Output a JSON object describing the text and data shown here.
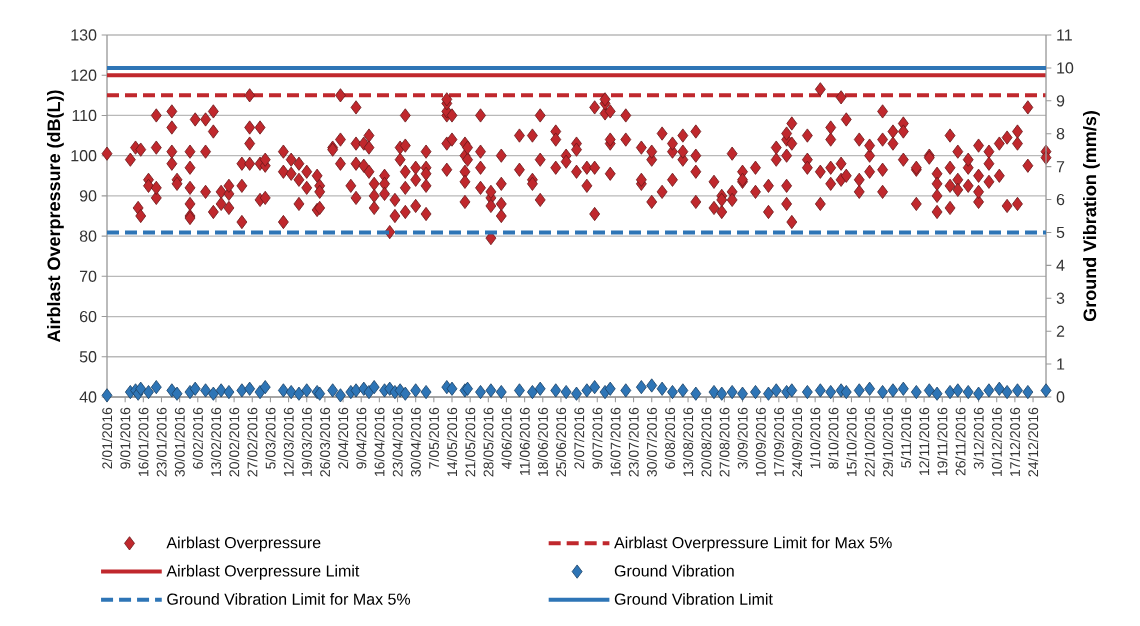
{
  "chart_data": {
    "type": "scatter",
    "ylabel": "Airblast Overpressure (dB(L))",
    "y2label": "Ground Vibration (mm/s)",
    "xlim": [
      "2016-01-02",
      "2016-12-29"
    ],
    "xticks": [
      {
        "value": "2016-01-02",
        "label": "2/01/2016"
      },
      {
        "value": "2016-01-09",
        "label": "9/01/2016"
      },
      {
        "value": "2016-01-16",
        "label": "16/01/2016"
      },
      {
        "value": "2016-01-23",
        "label": "23/01/2016"
      },
      {
        "value": "2016-01-30",
        "label": "30/01/2016"
      },
      {
        "value": "2016-02-06",
        "label": "6/02/2016"
      },
      {
        "value": "2016-02-13",
        "label": "13/02/2016"
      },
      {
        "value": "2016-02-20",
        "label": "20/02/2016"
      },
      {
        "value": "2016-02-27",
        "label": "27/02/2016"
      },
      {
        "value": "2016-03-05",
        "label": "5/03/2016"
      },
      {
        "value": "2016-03-12",
        "label": "12/03/2016"
      },
      {
        "value": "2016-03-19",
        "label": "19/03/2016"
      },
      {
        "value": "2016-03-26",
        "label": "26/03/2016"
      },
      {
        "value": "2016-04-02",
        "label": "2/04/2016"
      },
      {
        "value": "2016-04-09",
        "label": "9/04/2016"
      },
      {
        "value": "2016-04-16",
        "label": "16/04/2016"
      },
      {
        "value": "2016-04-23",
        "label": "23/04/2016"
      },
      {
        "value": "2016-04-30",
        "label": "30/04/2016"
      },
      {
        "value": "2016-05-07",
        "label": "7/05/2016"
      },
      {
        "value": "2016-05-14",
        "label": "14/05/2016"
      },
      {
        "value": "2016-05-21",
        "label": "21/05/2016"
      },
      {
        "value": "2016-05-28",
        "label": "28/05/2016"
      },
      {
        "value": "2016-06-04",
        "label": "4/06/2016"
      },
      {
        "value": "2016-06-11",
        "label": "11/06/2016"
      },
      {
        "value": "2016-06-18",
        "label": "18/06/2016"
      },
      {
        "value": "2016-06-25",
        "label": "25/06/2016"
      },
      {
        "value": "2016-07-02",
        "label": "2/07/2016"
      },
      {
        "value": "2016-07-09",
        "label": "9/07/2016"
      },
      {
        "value": "2016-07-16",
        "label": "16/07/2016"
      },
      {
        "value": "2016-07-23",
        "label": "23/07/2016"
      },
      {
        "value": "2016-07-30",
        "label": "30/07/2016"
      },
      {
        "value": "2016-08-06",
        "label": "6/08/2016"
      },
      {
        "value": "2016-08-13",
        "label": "13/08/2016"
      },
      {
        "value": "2016-08-20",
        "label": "20/08/2016"
      },
      {
        "value": "2016-08-27",
        "label": "27/08/2016"
      },
      {
        "value": "2016-09-03",
        "label": "3/09/2016"
      },
      {
        "value": "2016-09-10",
        "label": "10/09/2016"
      },
      {
        "value": "2016-09-17",
        "label": "17/09/2016"
      },
      {
        "value": "2016-09-24",
        "label": "24/09/2016"
      },
      {
        "value": "2016-10-01",
        "label": "1/10/2016"
      },
      {
        "value": "2016-10-08",
        "label": "8/10/2016"
      },
      {
        "value": "2016-10-15",
        "label": "15/10/2016"
      },
      {
        "value": "2016-10-22",
        "label": "22/10/2016"
      },
      {
        "value": "2016-10-29",
        "label": "29/10/2016"
      },
      {
        "value": "2016-11-05",
        "label": "5/11/2016"
      },
      {
        "value": "2016-11-12",
        "label": "12/11/2016"
      },
      {
        "value": "2016-11-19",
        "label": "19/11/2016"
      },
      {
        "value": "2016-11-26",
        "label": "26/11/2016"
      },
      {
        "value": "2016-12-03",
        "label": "3/12/2016"
      },
      {
        "value": "2016-12-10",
        "label": "10/12/2016"
      },
      {
        "value": "2016-12-17",
        "label": "17/12/2016"
      },
      {
        "value": "2016-12-24",
        "label": "24/12/2016"
      }
    ],
    "ylim": [
      40,
      130
    ],
    "yticks": [
      40,
      50,
      60,
      70,
      80,
      90,
      100,
      110,
      120,
      130
    ],
    "y2lim": [
      0,
      11
    ],
    "y2ticks": [
      0,
      1,
      2,
      3,
      4,
      5,
      6,
      7,
      8,
      9,
      10,
      11
    ],
    "grid": "y",
    "legend": "bottom",
    "marker": "diamond",
    "series": [
      {
        "name": "Airblast Overpressure",
        "color": "#c0282d",
        "x": [
          "2016-01-02",
          "2016-01-11",
          "2016-01-13",
          "2016-01-14",
          "2016-01-15",
          "2016-01-15",
          "2016-01-18",
          "2016-01-18",
          "2016-01-21",
          "2016-01-21",
          "2016-01-21",
          "2016-01-21",
          "2016-01-27",
          "2016-01-27",
          "2016-01-27",
          "2016-01-27",
          "2016-01-29",
          "2016-01-29",
          "2016-02-03",
          "2016-02-03",
          "2016-02-03",
          "2016-02-03",
          "2016-02-03",
          "2016-02-03",
          "2016-02-05",
          "2016-02-09",
          "2016-02-09",
          "2016-02-09",
          "2016-02-12",
          "2016-02-12",
          "2016-02-12",
          "2016-02-15",
          "2016-02-15",
          "2016-02-18",
          "2016-02-18",
          "2016-02-18",
          "2016-02-23",
          "2016-02-23",
          "2016-02-23",
          "2016-02-26",
          "2016-02-26",
          "2016-02-26",
          "2016-02-26",
          "2016-03-01",
          "2016-03-01",
          "2016-03-01",
          "2016-03-03",
          "2016-03-03",
          "2016-03-03",
          "2016-03-10",
          "2016-03-10",
          "2016-03-10",
          "2016-03-13",
          "2016-03-13",
          "2016-03-16",
          "2016-03-16",
          "2016-03-16",
          "2016-03-19",
          "2016-03-19",
          "2016-03-23",
          "2016-03-23",
          "2016-03-24",
          "2016-03-24",
          "2016-03-24",
          "2016-03-29",
          "2016-03-29",
          "2016-04-01",
          "2016-04-01",
          "2016-04-01",
          "2016-04-05",
          "2016-04-07",
          "2016-04-07",
          "2016-04-07",
          "2016-04-07",
          "2016-04-10",
          "2016-04-10",
          "2016-04-12",
          "2016-04-12",
          "2016-04-12",
          "2016-04-14",
          "2016-04-14",
          "2016-04-14",
          "2016-04-18",
          "2016-04-18",
          "2016-04-18",
          "2016-04-20",
          "2016-04-22",
          "2016-04-22",
          "2016-04-24",
          "2016-04-24",
          "2016-04-26",
          "2016-04-26",
          "2016-04-26",
          "2016-04-26",
          "2016-04-26",
          "2016-04-30",
          "2016-04-30",
          "2016-04-30",
          "2016-05-04",
          "2016-05-04",
          "2016-05-04",
          "2016-05-04",
          "2016-05-04",
          "2016-05-12",
          "2016-05-12",
          "2016-05-12",
          "2016-05-12",
          "2016-05-12",
          "2016-05-12",
          "2016-05-14",
          "2016-05-14",
          "2016-05-19",
          "2016-05-19",
          "2016-05-19",
          "2016-05-19",
          "2016-05-19",
          "2016-05-20",
          "2016-05-20",
          "2016-05-25",
          "2016-05-25",
          "2016-05-25",
          "2016-05-25",
          "2016-05-29",
          "2016-05-29",
          "2016-05-29",
          "2016-05-29",
          "2016-06-02",
          "2016-06-02",
          "2016-06-02",
          "2016-06-02",
          "2016-06-09",
          "2016-06-09",
          "2016-06-14",
          "2016-06-14",
          "2016-06-14",
          "2016-06-17",
          "2016-06-17",
          "2016-06-17",
          "2016-06-23",
          "2016-06-23",
          "2016-06-23",
          "2016-06-27",
          "2016-06-27",
          "2016-07-01",
          "2016-07-01",
          "2016-07-01",
          "2016-07-05",
          "2016-07-05",
          "2016-07-08",
          "2016-07-08",
          "2016-07-08",
          "2016-07-12",
          "2016-07-12",
          "2016-07-12",
          "2016-07-14",
          "2016-07-14",
          "2016-07-14",
          "2016-07-14",
          "2016-07-20",
          "2016-07-20",
          "2016-07-26",
          "2016-07-26",
          "2016-07-26",
          "2016-07-30",
          "2016-07-30",
          "2016-07-30",
          "2016-08-03",
          "2016-08-03",
          "2016-08-07",
          "2016-08-07",
          "2016-08-07",
          "2016-08-11",
          "2016-08-11",
          "2016-08-11",
          "2016-08-16",
          "2016-08-16",
          "2016-08-16",
          "2016-08-16",
          "2016-08-23",
          "2016-08-23",
          "2016-08-26",
          "2016-08-26",
          "2016-08-26",
          "2016-08-30",
          "2016-08-30",
          "2016-08-30",
          "2016-09-03",
          "2016-09-03",
          "2016-09-03",
          "2016-09-08",
          "2016-09-08",
          "2016-09-13",
          "2016-09-13",
          "2016-09-16",
          "2016-09-16",
          "2016-09-20",
          "2016-09-20",
          "2016-09-20",
          "2016-09-20",
          "2016-09-20",
          "2016-09-22",
          "2016-09-22",
          "2016-09-22",
          "2016-09-28",
          "2016-09-28",
          "2016-09-28",
          "2016-10-03",
          "2016-10-03",
          "2016-10-03",
          "2016-10-07",
          "2016-10-07",
          "2016-10-07",
          "2016-10-07",
          "2016-10-11",
          "2016-10-11",
          "2016-10-11",
          "2016-10-13",
          "2016-10-13",
          "2016-10-18",
          "2016-10-18",
          "2016-10-18",
          "2016-10-22",
          "2016-10-22",
          "2016-10-22",
          "2016-10-27",
          "2016-10-27",
          "2016-10-27",
          "2016-10-27",
          "2016-10-31",
          "2016-10-31",
          "2016-11-04",
          "2016-11-04",
          "2016-11-04",
          "2016-11-09",
          "2016-11-09",
          "2016-11-09",
          "2016-11-14",
          "2016-11-14",
          "2016-11-17",
          "2016-11-17",
          "2016-11-17",
          "2016-11-17",
          "2016-11-22",
          "2016-11-22",
          "2016-11-22",
          "2016-11-22",
          "2016-11-25",
          "2016-11-25",
          "2016-11-25",
          "2016-11-29",
          "2016-11-29",
          "2016-11-29",
          "2016-12-03",
          "2016-12-03",
          "2016-12-03",
          "2016-12-03",
          "2016-12-07",
          "2016-12-07",
          "2016-12-07",
          "2016-12-11",
          "2016-12-11",
          "2016-12-14",
          "2016-12-14",
          "2016-12-18",
          "2016-12-18",
          "2016-12-18",
          "2016-12-22",
          "2016-12-22",
          "2016-12-29",
          "2016-12-29"
        ],
        "values": [
          100.5,
          99,
          102,
          87,
          85,
          101.5,
          94,
          92.5,
          110,
          102,
          89.5,
          92,
          98,
          107,
          111,
          101,
          94,
          93,
          88,
          85,
          84.5,
          92,
          97,
          101,
          109,
          101,
          91,
          109,
          86,
          106,
          111,
          91,
          88,
          90.5,
          87,
          92.5,
          98,
          92.5,
          83.5,
          98,
          115,
          107,
          103,
          98,
          107,
          89,
          97.5,
          99,
          89.5,
          101,
          96,
          83.5,
          99,
          95.5,
          98,
          94,
          88,
          96,
          92,
          95,
          86.5,
          92.5,
          91,
          87,
          102,
          101.5,
          104,
          115,
          98,
          92.5,
          103,
          98,
          89.5,
          112,
          97.5,
          103,
          105,
          102,
          96,
          93,
          87,
          90,
          95,
          93,
          90.5,
          81,
          89,
          85,
          99,
          102,
          110,
          102.5,
          96,
          86,
          92,
          87.5,
          94,
          97,
          101,
          97,
          95.5,
          85.5,
          92.5,
          110,
          111,
          113,
          114,
          103,
          96.5,
          104,
          110,
          103,
          100,
          96,
          93.5,
          88.5,
          99,
          102,
          110,
          101,
          97,
          92,
          89.5,
          87.5,
          79.5,
          91,
          93,
          100,
          85,
          88,
          105,
          96.5,
          105,
          94,
          93,
          110,
          99,
          89,
          106,
          104,
          97,
          100,
          98.5,
          103,
          96,
          101.5,
          92.5,
          97,
          112,
          85.5,
          97,
          110.5,
          113,
          114,
          103,
          104,
          111,
          95.5,
          110,
          104,
          93,
          94,
          102,
          99,
          88.5,
          101,
          105.5,
          91,
          94,
          101,
          103,
          105,
          99,
          101,
          96,
          88.5,
          106,
          100,
          93.5,
          87,
          90,
          86,
          89,
          91,
          100.5,
          89,
          96,
          93.5,
          94,
          91,
          97,
          86,
          92.5,
          99,
          102,
          104,
          105.5,
          100,
          88,
          92.5,
          108,
          103,
          83.5,
          99,
          105,
          97,
          116.5,
          96,
          88,
          104,
          107,
          93,
          97,
          114.5,
          98,
          94,
          109,
          95,
          104,
          91,
          94,
          100,
          96,
          102.5,
          111,
          104,
          96.5,
          91,
          106,
          103,
          108,
          99,
          106,
          88,
          96.5,
          97,
          100,
          99.5,
          95.5,
          93,
          90,
          86,
          105,
          92.5,
          87,
          97,
          101,
          94,
          91.5,
          97,
          99,
          92.5,
          102.5,
          95,
          88.5,
          91,
          101,
          98,
          93.5,
          103,
          95,
          104.5,
          87.5,
          106,
          103,
          88,
          112,
          97.5,
          101,
          99.5
        ]
      },
      {
        "name": "Ground Vibration",
        "color": "#2e75b6",
        "axis": "y2",
        "x": [
          "2016-01-02",
          "2016-01-11",
          "2016-01-13",
          "2016-01-14",
          "2016-01-15",
          "2016-01-18",
          "2016-01-21",
          "2016-01-27",
          "2016-01-29",
          "2016-02-03",
          "2016-02-05",
          "2016-02-09",
          "2016-02-12",
          "2016-02-15",
          "2016-02-18",
          "2016-02-23",
          "2016-02-26",
          "2016-03-01",
          "2016-03-03",
          "2016-03-10",
          "2016-03-13",
          "2016-03-16",
          "2016-03-19",
          "2016-03-23",
          "2016-03-24",
          "2016-03-29",
          "2016-04-01",
          "2016-04-05",
          "2016-04-07",
          "2016-04-10",
          "2016-04-12",
          "2016-04-14",
          "2016-04-18",
          "2016-04-20",
          "2016-04-22",
          "2016-04-24",
          "2016-04-26",
          "2016-04-30",
          "2016-05-04",
          "2016-05-12",
          "2016-05-14",
          "2016-05-19",
          "2016-05-20",
          "2016-05-25",
          "2016-05-29",
          "2016-06-02",
          "2016-06-09",
          "2016-06-14",
          "2016-06-17",
          "2016-06-23",
          "2016-06-27",
          "2016-07-01",
          "2016-07-05",
          "2016-07-08",
          "2016-07-12",
          "2016-07-14",
          "2016-07-20",
          "2016-07-26",
          "2016-07-30",
          "2016-08-03",
          "2016-08-07",
          "2016-08-11",
          "2016-08-16",
          "2016-08-23",
          "2016-08-26",
          "2016-08-30",
          "2016-09-03",
          "2016-09-08",
          "2016-09-13",
          "2016-09-16",
          "2016-09-20",
          "2016-09-22",
          "2016-09-28",
          "2016-10-03",
          "2016-10-07",
          "2016-10-11",
          "2016-10-13",
          "2016-10-18",
          "2016-10-22",
          "2016-10-27",
          "2016-10-31",
          "2016-11-04",
          "2016-11-09",
          "2016-11-14",
          "2016-11-17",
          "2016-11-22",
          "2016-11-25",
          "2016-11-29",
          "2016-12-03",
          "2016-12-07",
          "2016-12-11",
          "2016-12-14",
          "2016-12-18",
          "2016-12-22",
          "2016-12-29"
        ],
        "values": [
          0.05,
          0.15,
          0.2,
          0.1,
          0.25,
          0.15,
          0.3,
          0.2,
          0.1,
          0.15,
          0.25,
          0.2,
          0.1,
          0.2,
          0.15,
          0.2,
          0.25,
          0.15,
          0.3,
          0.2,
          0.15,
          0.1,
          0.2,
          0.15,
          0.1,
          0.2,
          0.05,
          0.15,
          0.2,
          0.25,
          0.15,
          0.3,
          0.2,
          0.25,
          0.15,
          0.2,
          0.1,
          0.2,
          0.15,
          0.3,
          0.25,
          0.2,
          0.25,
          0.15,
          0.2,
          0.15,
          0.2,
          0.15,
          0.25,
          0.2,
          0.15,
          0.1,
          0.2,
          0.3,
          0.15,
          0.25,
          0.2,
          0.3,
          0.35,
          0.25,
          0.15,
          0.2,
          0.1,
          0.15,
          0.1,
          0.15,
          0.1,
          0.15,
          0.1,
          0.2,
          0.15,
          0.2,
          0.15,
          0.2,
          0.15,
          0.2,
          0.15,
          0.2,
          0.25,
          0.15,
          0.2,
          0.25,
          0.15,
          0.2,
          0.1,
          0.15,
          0.2,
          0.15,
          0.1,
          0.2,
          0.25,
          0.15,
          0.2,
          0.15,
          0.2
        ]
      }
    ],
    "ref_lines": [
      {
        "axis": "y",
        "value": 115,
        "label": "Airblast Overpressure Limit for Max 5%",
        "color": "#c0282d",
        "line_style": "dashed"
      },
      {
        "axis": "y",
        "value": 120,
        "label": "Airblast Overpressure Limit",
        "color": "#c0282d",
        "line_style": "solid"
      },
      {
        "axis": "y2",
        "value": 5,
        "label": "Ground Vibration Limit for Max 5%",
        "color": "#2e75b6",
        "line_style": "dashed"
      },
      {
        "axis": "y2",
        "value": 10,
        "label": "Ground Vibration Limit",
        "color": "#2e75b6",
        "line_style": "solid"
      }
    ]
  }
}
